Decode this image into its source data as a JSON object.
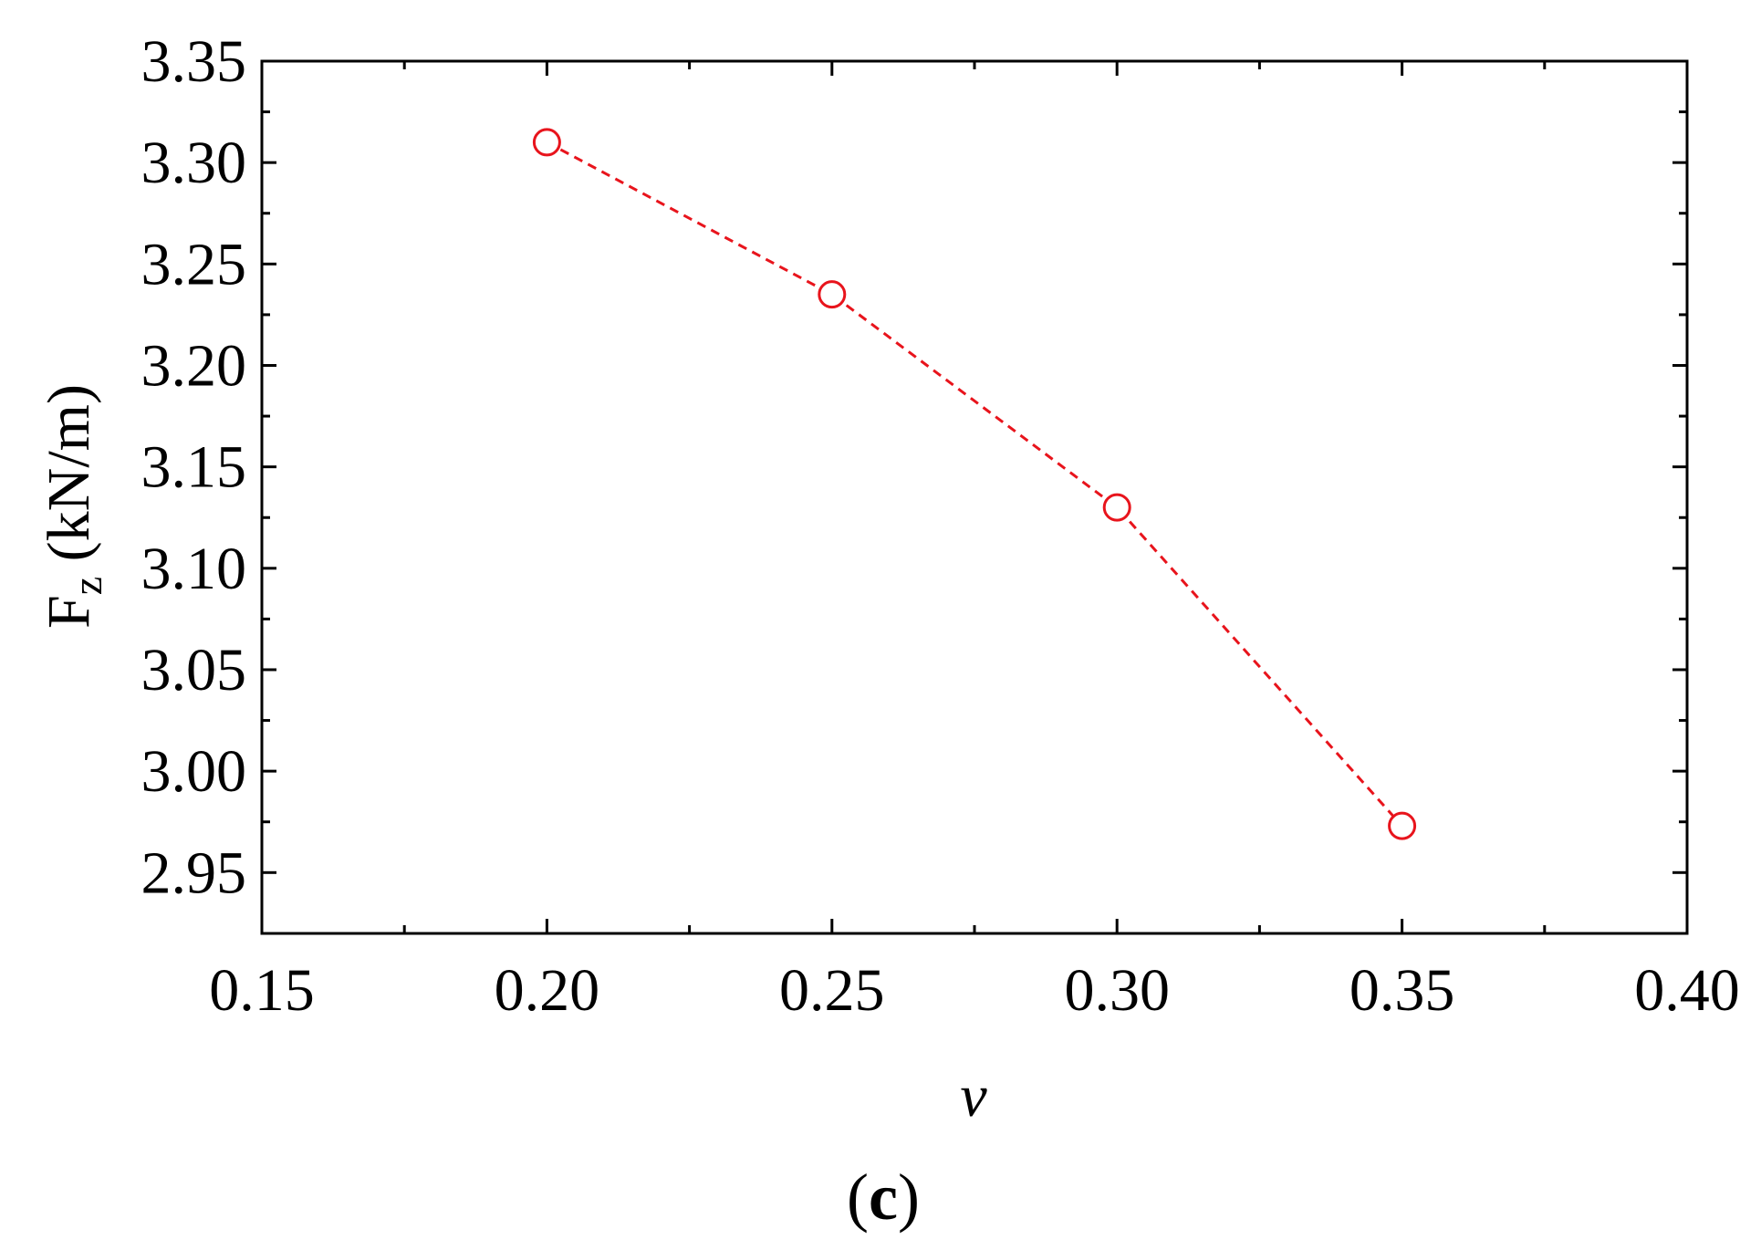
{
  "chart_data": {
    "type": "line",
    "xlabel": "ν",
    "ylabel_main": "F",
    "ylabel_sub": "z",
    "ylabel_unit": " (kN/m)",
    "xlim": [
      0.15,
      0.4
    ],
    "ylim": [
      2.92,
      3.35
    ],
    "x_major_ticks": [
      0.15,
      0.2,
      0.25,
      0.3,
      0.35,
      0.4
    ],
    "x_tick_labels": [
      "0.15",
      "0.20",
      "0.25",
      "0.30",
      "0.35",
      "0.40"
    ],
    "x_minor_ticks": [
      0.175,
      0.225,
      0.275,
      0.325,
      0.375
    ],
    "y_major_ticks": [
      2.95,
      3.0,
      3.05,
      3.1,
      3.15,
      3.2,
      3.25,
      3.3,
      3.35
    ],
    "y_tick_labels": [
      "2.95",
      "3.00",
      "3.05",
      "3.10",
      "3.15",
      "3.20",
      "3.25",
      "3.30",
      "3.35"
    ],
    "y_minor_ticks": [
      2.975,
      3.025,
      3.075,
      3.125,
      3.175,
      3.225,
      3.275,
      3.325
    ],
    "grid": false,
    "legend": "none",
    "series": [
      {
        "color": "#e8141c",
        "line_style": "dashed",
        "marker": "open-circle",
        "x": [
          0.2,
          0.25,
          0.3,
          0.35
        ],
        "values": [
          3.31,
          3.235,
          3.13,
          2.973
        ]
      }
    ]
  },
  "panel_label": {
    "open": "(",
    "letter": "c",
    "close": ")"
  }
}
